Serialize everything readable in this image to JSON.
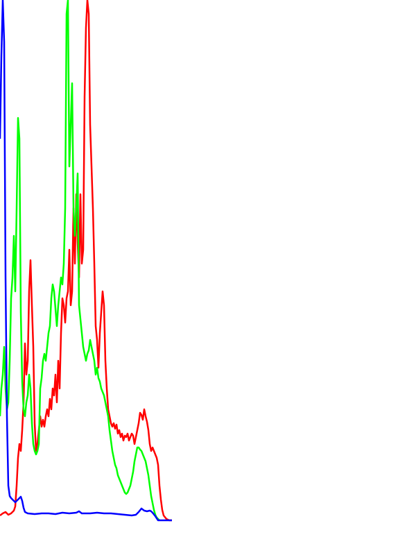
{
  "chart_data": {
    "type": "line",
    "title": "",
    "xlabel": "",
    "ylabel": "",
    "x_range": [
      0,
      255
    ],
    "y_range": [
      0,
      750
    ],
    "grid": false,
    "legend": "none",
    "series": [
      {
        "color": "#ff0000",
        "points": [
          [
            0,
            743
          ],
          [
            4,
            740
          ],
          [
            8,
            738
          ],
          [
            12,
            742
          ],
          [
            16,
            740
          ],
          [
            20,
            736
          ],
          [
            22,
            730
          ],
          [
            24,
            700
          ],
          [
            26,
            660
          ],
          [
            28,
            640
          ],
          [
            30,
            650
          ],
          [
            32,
            620
          ],
          [
            34,
            580
          ],
          [
            36,
            495
          ],
          [
            38,
            540
          ],
          [
            40,
            520
          ],
          [
            42,
            420
          ],
          [
            44,
            375
          ],
          [
            46,
            440
          ],
          [
            48,
            500
          ],
          [
            50,
            610
          ],
          [
            52,
            650
          ],
          [
            54,
            640
          ],
          [
            56,
            620
          ],
          [
            58,
            600
          ],
          [
            60,
            615
          ],
          [
            62,
            605
          ],
          [
            64,
            615
          ],
          [
            66,
            600
          ],
          [
            68,
            590
          ],
          [
            70,
            600
          ],
          [
            72,
            575
          ],
          [
            74,
            590
          ],
          [
            76,
            560
          ],
          [
            78,
            570
          ],
          [
            80,
            540
          ],
          [
            82,
            580
          ],
          [
            84,
            520
          ],
          [
            86,
            560
          ],
          [
            88,
            480
          ],
          [
            90,
            430
          ],
          [
            92,
            440
          ],
          [
            94,
            465
          ],
          [
            96,
            430
          ],
          [
            98,
            420
          ],
          [
            100,
            360
          ],
          [
            102,
            440
          ],
          [
            104,
            420
          ],
          [
            106,
            300
          ],
          [
            108,
            380
          ],
          [
            110,
            280
          ],
          [
            112,
            350
          ],
          [
            114,
            400
          ],
          [
            116,
            280
          ],
          [
            118,
            380
          ],
          [
            120,
            360
          ],
          [
            122,
            140
          ],
          [
            124,
            40
          ],
          [
            126,
            0
          ],
          [
            128,
            20
          ],
          [
            130,
            180
          ],
          [
            132,
            240
          ],
          [
            134,
            300
          ],
          [
            136,
            380
          ],
          [
            138,
            470
          ],
          [
            140,
            490
          ],
          [
            142,
            530
          ],
          [
            144,
            480
          ],
          [
            146,
            450
          ],
          [
            148,
            420
          ],
          [
            150,
            440
          ],
          [
            152,
            520
          ],
          [
            154,
            560
          ],
          [
            156,
            590
          ],
          [
            158,
            600
          ],
          [
            160,
            610
          ],
          [
            162,
            615
          ],
          [
            164,
            610
          ],
          [
            166,
            618
          ],
          [
            168,
            612
          ],
          [
            170,
            625
          ],
          [
            172,
            620
          ],
          [
            174,
            630
          ],
          [
            176,
            625
          ],
          [
            178,
            635
          ],
          [
            180,
            628
          ],
          [
            182,
            630
          ],
          [
            184,
            625
          ],
          [
            186,
            635
          ],
          [
            188,
            630
          ],
          [
            190,
            625
          ],
          [
            192,
            628
          ],
          [
            194,
            640
          ],
          [
            196,
            630
          ],
          [
            198,
            620
          ],
          [
            200,
            610
          ],
          [
            202,
            595
          ],
          [
            204,
            598
          ],
          [
            206,
            605
          ],
          [
            208,
            590
          ],
          [
            210,
            600
          ],
          [
            212,
            608
          ],
          [
            214,
            620
          ],
          [
            216,
            640
          ],
          [
            218,
            650
          ],
          [
            220,
            645
          ],
          [
            222,
            650
          ],
          [
            224,
            655
          ],
          [
            226,
            660
          ],
          [
            228,
            670
          ],
          [
            230,
            700
          ],
          [
            232,
            720
          ],
          [
            234,
            735
          ],
          [
            236,
            743
          ],
          [
            240,
            748
          ],
          [
            244,
            750
          ],
          [
            248,
            750
          ]
        ]
      },
      {
        "color": "#00ff00",
        "points": [
          [
            0,
            600
          ],
          [
            2,
            560
          ],
          [
            4,
            540
          ],
          [
            6,
            500
          ],
          [
            8,
            560
          ],
          [
            10,
            590
          ],
          [
            12,
            580
          ],
          [
            14,
            520
          ],
          [
            16,
            430
          ],
          [
            18,
            400
          ],
          [
            20,
            340
          ],
          [
            22,
            420
          ],
          [
            24,
            300
          ],
          [
            26,
            170
          ],
          [
            28,
            200
          ],
          [
            30,
            450
          ],
          [
            32,
            550
          ],
          [
            34,
            590
          ],
          [
            36,
            600
          ],
          [
            38,
            580
          ],
          [
            40,
            570
          ],
          [
            42,
            540
          ],
          [
            44,
            560
          ],
          [
            46,
            610
          ],
          [
            48,
            640
          ],
          [
            50,
            650
          ],
          [
            52,
            655
          ],
          [
            54,
            650
          ],
          [
            56,
            640
          ],
          [
            58,
            560
          ],
          [
            60,
            545
          ],
          [
            62,
            520
          ],
          [
            64,
            510
          ],
          [
            66,
            520
          ],
          [
            68,
            500
          ],
          [
            70,
            480
          ],
          [
            72,
            470
          ],
          [
            74,
            430
          ],
          [
            76,
            410
          ],
          [
            78,
            420
          ],
          [
            80,
            445
          ],
          [
            82,
            470
          ],
          [
            84,
            440
          ],
          [
            86,
            420
          ],
          [
            88,
            400
          ],
          [
            90,
            410
          ],
          [
            92,
            380
          ],
          [
            94,
            300
          ],
          [
            96,
            20
          ],
          [
            98,
            0
          ],
          [
            100,
            240
          ],
          [
            102,
            180
          ],
          [
            104,
            120
          ],
          [
            106,
            300
          ],
          [
            108,
            340
          ],
          [
            110,
            300
          ],
          [
            112,
            250
          ],
          [
            114,
            440
          ],
          [
            116,
            460
          ],
          [
            118,
            480
          ],
          [
            120,
            500
          ],
          [
            122,
            510
          ],
          [
            124,
            520
          ],
          [
            126,
            510
          ],
          [
            128,
            505
          ],
          [
            130,
            490
          ],
          [
            132,
            500
          ],
          [
            134,
            510
          ],
          [
            136,
            520
          ],
          [
            138,
            540
          ],
          [
            140,
            530
          ],
          [
            142,
            545
          ],
          [
            144,
            550
          ],
          [
            146,
            560
          ],
          [
            148,
            565
          ],
          [
            150,
            570
          ],
          [
            152,
            580
          ],
          [
            154,
            590
          ],
          [
            156,
            600
          ],
          [
            158,
            620
          ],
          [
            160,
            635
          ],
          [
            162,
            650
          ],
          [
            164,
            660
          ],
          [
            166,
            670
          ],
          [
            168,
            675
          ],
          [
            170,
            685
          ],
          [
            172,
            690
          ],
          [
            174,
            695
          ],
          [
            176,
            700
          ],
          [
            178,
            705
          ],
          [
            180,
            710
          ],
          [
            182,
            712
          ],
          [
            184,
            710
          ],
          [
            186,
            705
          ],
          [
            188,
            700
          ],
          [
            190,
            690
          ],
          [
            192,
            680
          ],
          [
            194,
            665
          ],
          [
            196,
            655
          ],
          [
            198,
            645
          ],
          [
            200,
            645
          ],
          [
            202,
            648
          ],
          [
            204,
            650
          ],
          [
            206,
            655
          ],
          [
            208,
            660
          ],
          [
            210,
            665
          ],
          [
            212,
            675
          ],
          [
            214,
            685
          ],
          [
            216,
            700
          ],
          [
            218,
            715
          ],
          [
            220,
            725
          ],
          [
            222,
            735
          ],
          [
            224,
            742
          ],
          [
            226,
            746
          ],
          [
            228,
            748
          ],
          [
            230,
            750
          ]
        ]
      },
      {
        "color": "#0000ff",
        "points": [
          [
            0,
            200
          ],
          [
            2,
            80
          ],
          [
            4,
            0
          ],
          [
            6,
            60
          ],
          [
            8,
            400
          ],
          [
            10,
            600
          ],
          [
            12,
            700
          ],
          [
            14,
            715
          ],
          [
            16,
            718
          ],
          [
            18,
            720
          ],
          [
            20,
            722
          ],
          [
            22,
            724
          ],
          [
            24,
            722
          ],
          [
            26,
            720
          ],
          [
            28,
            718
          ],
          [
            30,
            716
          ],
          [
            32,
            722
          ],
          [
            34,
            732
          ],
          [
            36,
            738
          ],
          [
            40,
            740
          ],
          [
            50,
            741
          ],
          [
            60,
            740
          ],
          [
            70,
            740
          ],
          [
            80,
            741
          ],
          [
            90,
            739
          ],
          [
            100,
            740
          ],
          [
            110,
            739
          ],
          [
            114,
            737
          ],
          [
            118,
            740
          ],
          [
            130,
            740
          ],
          [
            140,
            739
          ],
          [
            150,
            740
          ],
          [
            160,
            740
          ],
          [
            170,
            741
          ],
          [
            180,
            742
          ],
          [
            190,
            743
          ],
          [
            196,
            742
          ],
          [
            200,
            738
          ],
          [
            204,
            733
          ],
          [
            208,
            736
          ],
          [
            212,
            737
          ],
          [
            216,
            736
          ],
          [
            218,
            737
          ],
          [
            220,
            739
          ],
          [
            224,
            744
          ],
          [
            228,
            750
          ],
          [
            240,
            750
          ],
          [
            248,
            750
          ]
        ]
      }
    ]
  }
}
